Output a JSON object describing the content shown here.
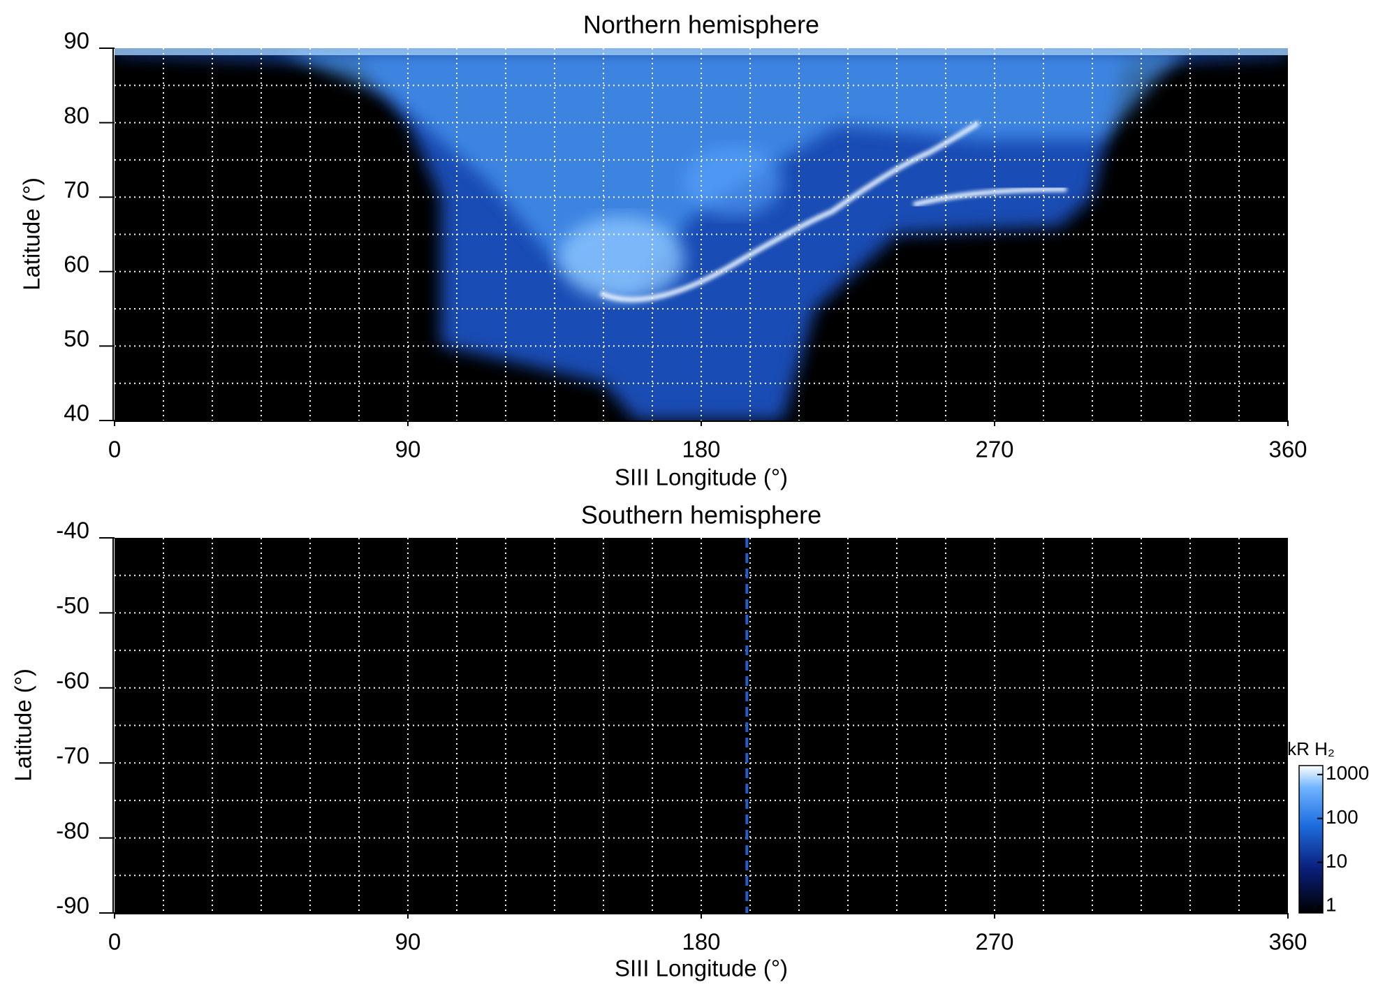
{
  "chart_data": [
    {
      "type": "heatmap",
      "title": "Northern hemisphere",
      "xlabel": "SIII Longitude (°)",
      "ylabel": "Latitude (°)",
      "xlim": [
        0,
        360
      ],
      "xticks": [
        0,
        90,
        180,
        270,
        360
      ],
      "ylim": [
        40,
        90
      ],
      "yticks": [
        90,
        80,
        70,
        60,
        50,
        40
      ],
      "grid": true,
      "grid_x": [
        15,
        30,
        45,
        60,
        75,
        90,
        105,
        120,
        135,
        150,
        165,
        180,
        195,
        210,
        225,
        240,
        255,
        270,
        285,
        300,
        315,
        330,
        345
      ],
      "grid_y": [
        45,
        50,
        55,
        60,
        65,
        70,
        75,
        80,
        85
      ]
    },
    {
      "type": "heatmap",
      "title": "Southern hemisphere",
      "xlabel": "SIII Longitude (°)",
      "ylabel": "Latitude (°)",
      "xlim": [
        0,
        360
      ],
      "xticks": [
        0,
        90,
        180,
        270,
        360
      ],
      "ylim": [
        -90,
        -40
      ],
      "yticks": [
        -40,
        -50,
        -60,
        -70,
        -80,
        -90
      ],
      "grid": true,
      "grid_x": [
        15,
        30,
        45,
        60,
        75,
        90,
        105,
        120,
        135,
        150,
        165,
        180,
        195,
        210,
        225,
        240,
        255,
        270,
        285,
        300,
        315,
        330,
        345
      ],
      "grid_y": [
        -85,
        -80,
        -75,
        -70,
        -65,
        -60,
        -55,
        -50,
        -45
      ],
      "vline": {
        "x": 194,
        "color": "#1f5fd0"
      },
      "colorbar": {
        "label": "kR H₂",
        "log": true,
        "lim": [
          0.7,
          1600
        ],
        "ticks": [
          1,
          10,
          100,
          1000
        ]
      }
    }
  ]
}
